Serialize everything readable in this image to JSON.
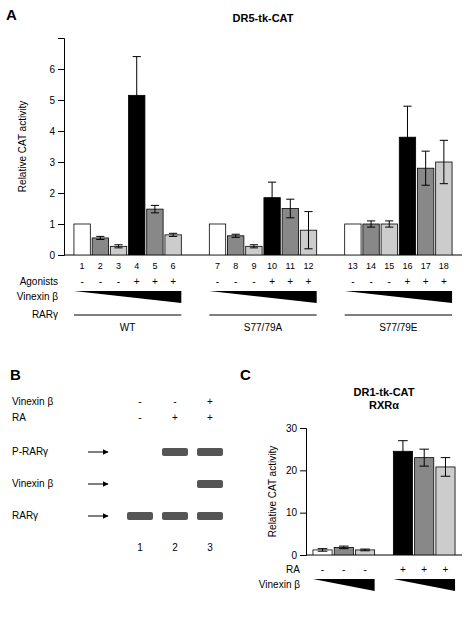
{
  "chart_data": [
    {
      "type": "bar",
      "panel_label": "A",
      "title": "DR5-tk-CAT",
      "y_label": "Relative CAT activity",
      "categories": [
        "1",
        "2",
        "3",
        "4",
        "5",
        "6",
        "7",
        "8",
        "9",
        "10",
        "11",
        "12",
        "13",
        "14",
        "15",
        "16",
        "17",
        "18"
      ],
      "values": [
        1.0,
        0.55,
        0.28,
        5.15,
        1.48,
        0.65,
        1.0,
        0.62,
        0.28,
        1.85,
        1.5,
        0.8,
        1.0,
        1.0,
        1.0,
        3.8,
        2.8,
        3.0
      ],
      "errors": [
        0.0,
        0.05,
        0.05,
        1.25,
        0.12,
        0.05,
        0.0,
        0.05,
        0.05,
        0.5,
        0.3,
        0.6,
        0.0,
        0.1,
        0.1,
        1.0,
        0.55,
        0.7
      ],
      "colors": [
        "white",
        "#888888",
        "#cccccc",
        "black",
        "#888888",
        "#cccccc",
        "white",
        "#888888",
        "#cccccc",
        "black",
        "#888888",
        "#cccccc",
        "white",
        "#888888",
        "#cccccc",
        "black",
        "#888888",
        "#cccccc"
      ],
      "ylim": [
        0,
        7
      ],
      "yticks": [
        0,
        1,
        2,
        3,
        4,
        5,
        6
      ],
      "rows": [
        {
          "label": "Agonists",
          "values": [
            "-",
            "-",
            "-",
            "+",
            "+",
            "+",
            "-",
            "-",
            "-",
            "+",
            "+",
            "+",
            "-",
            "-",
            "-",
            "+",
            "+",
            "+"
          ]
        }
      ],
      "ramp_label": "Vinexin β",
      "group_label": "RARγ",
      "groups": [
        "WT",
        "S77/79A",
        "S77/79E"
      ]
    },
    {
      "type": "blot",
      "panel_label": "B",
      "rows": [
        {
          "label": "Vinexin β",
          "values": [
            "-",
            "-",
            "+"
          ]
        },
        {
          "label": "RA",
          "values": [
            "-",
            "+",
            "+"
          ]
        }
      ],
      "bands": [
        {
          "name": "P-RARγ",
          "present": [
            false,
            true,
            true
          ]
        },
        {
          "name": "Vinexin β",
          "present": [
            false,
            false,
            true
          ]
        },
        {
          "name": "RARγ",
          "present": [
            true,
            true,
            true
          ]
        }
      ],
      "lanes": [
        "1",
        "2",
        "3"
      ]
    },
    {
      "type": "bar",
      "panel_label": "C",
      "title": "DR1-tk-CAT\nRXRα",
      "y_label": "Relative CAT activity",
      "categories": [
        null,
        null,
        null,
        null,
        null,
        null
      ],
      "values": [
        1.2,
        1.8,
        1.2,
        24.5,
        23.0,
        20.8
      ],
      "errors": [
        0.3,
        0.3,
        0.2,
        2.5,
        2.0,
        2.2
      ],
      "colors": [
        "white",
        "#888888",
        "#cccccc",
        "black",
        "#888888",
        "#cccccc"
      ],
      "ylim": [
        0,
        30
      ],
      "yticks": [
        0,
        10,
        20,
        30
      ],
      "rows": [
        {
          "label": "RA",
          "values": [
            "-",
            "-",
            "-",
            "+",
            "+",
            "+"
          ]
        }
      ],
      "ramp_label": "Vinexin β",
      "groups": [
        null,
        null
      ]
    }
  ]
}
